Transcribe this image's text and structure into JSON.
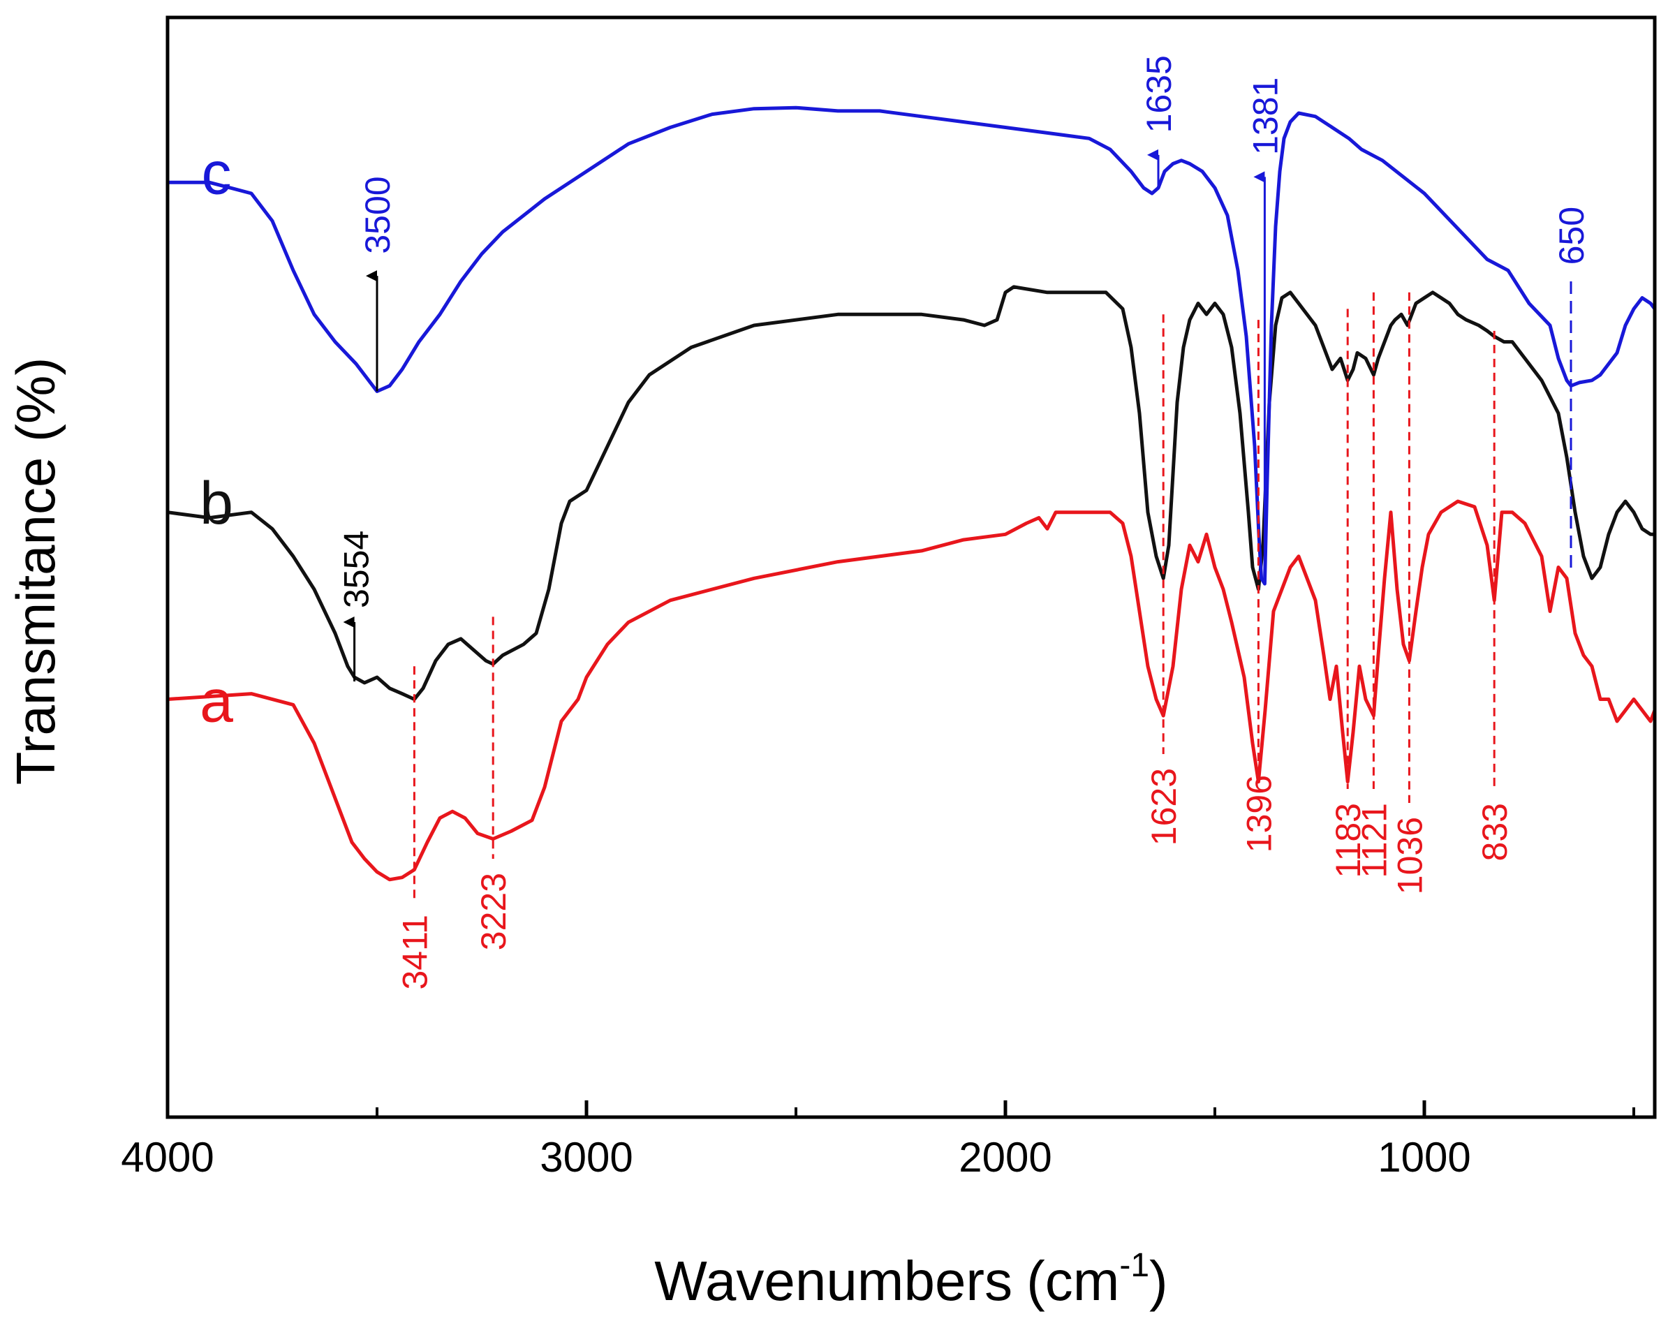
{
  "chart_data": {
    "type": "line",
    "title": "",
    "xlabel": "Wavenumbers",
    "xlabel_unit": "cm",
    "xlabel_unit_exp": "-1",
    "ylabel": "Transmitance (%)",
    "xlim": [
      4000,
      450
    ],
    "x_reversed": true,
    "ylim": [
      0,
      100
    ],
    "y_ticks_shown": false,
    "x_ticks": [
      {
        "value": 4000,
        "label": "4000"
      },
      {
        "value": 3000,
        "label": "3000"
      },
      {
        "value": 2000,
        "label": "2000"
      },
      {
        "value": 1000,
        "label": "1000"
      }
    ],
    "x_minor_ticks": [
      3500,
      2500,
      1500,
      500
    ],
    "series": [
      {
        "name": "a",
        "label": "a",
        "color": "#e8161c",
        "points": [
          [
            4000,
            38
          ],
          [
            3800,
            38.5
          ],
          [
            3700,
            37.5
          ],
          [
            3650,
            34
          ],
          [
            3600,
            29
          ],
          [
            3560,
            25
          ],
          [
            3530,
            23.5
          ],
          [
            3500,
            22.3
          ],
          [
            3470,
            21.6
          ],
          [
            3440,
            21.8
          ],
          [
            3411,
            22.5
          ],
          [
            3380,
            25
          ],
          [
            3350,
            27.2
          ],
          [
            3320,
            27.8
          ],
          [
            3290,
            27.2
          ],
          [
            3260,
            25.8
          ],
          [
            3223,
            25.3
          ],
          [
            3180,
            26
          ],
          [
            3130,
            27
          ],
          [
            3100,
            30
          ],
          [
            3060,
            36
          ],
          [
            3020,
            38
          ],
          [
            3000,
            40
          ],
          [
            2950,
            43
          ],
          [
            2900,
            45
          ],
          [
            2800,
            47
          ],
          [
            2600,
            49
          ],
          [
            2400,
            50.5
          ],
          [
            2200,
            51.5
          ],
          [
            2100,
            52.5
          ],
          [
            2000,
            53
          ],
          [
            1950,
            54
          ],
          [
            1920,
            54.5
          ],
          [
            1900,
            53.5
          ],
          [
            1880,
            55
          ],
          [
            1800,
            55
          ],
          [
            1750,
            55
          ],
          [
            1720,
            54
          ],
          [
            1700,
            51
          ],
          [
            1680,
            46
          ],
          [
            1660,
            41
          ],
          [
            1640,
            38
          ],
          [
            1623,
            36.5
          ],
          [
            1600,
            41
          ],
          [
            1580,
            48
          ],
          [
            1560,
            52
          ],
          [
            1540,
            50.5
          ],
          [
            1520,
            53
          ],
          [
            1500,
            50
          ],
          [
            1480,
            48
          ],
          [
            1460,
            45
          ],
          [
            1430,
            40
          ],
          [
            1410,
            34
          ],
          [
            1396,
            30.5
          ],
          [
            1380,
            37
          ],
          [
            1360,
            46
          ],
          [
            1340,
            48
          ],
          [
            1320,
            50
          ],
          [
            1300,
            51
          ],
          [
            1280,
            49
          ],
          [
            1260,
            47
          ],
          [
            1240,
            42
          ],
          [
            1225,
            38
          ],
          [
            1210,
            41
          ],
          [
            1195,
            35
          ],
          [
            1183,
            30.5
          ],
          [
            1170,
            35
          ],
          [
            1155,
            41
          ],
          [
            1140,
            38
          ],
          [
            1121,
            36.5
          ],
          [
            1110,
            42
          ],
          [
            1095,
            49
          ],
          [
            1080,
            55
          ],
          [
            1065,
            48
          ],
          [
            1050,
            43
          ],
          [
            1036,
            41.5
          ],
          [
            1020,
            46
          ],
          [
            1005,
            50
          ],
          [
            990,
            53
          ],
          [
            960,
            55
          ],
          [
            920,
            56
          ],
          [
            880,
            55.5
          ],
          [
            850,
            52
          ],
          [
            833,
            47
          ],
          [
            815,
            55
          ],
          [
            790,
            55
          ],
          [
            760,
            54
          ],
          [
            720,
            51
          ],
          [
            700,
            46
          ],
          [
            680,
            50
          ],
          [
            660,
            49
          ],
          [
            640,
            44
          ],
          [
            620,
            42
          ],
          [
            600,
            41
          ],
          [
            580,
            38
          ],
          [
            560,
            38
          ],
          [
            540,
            36
          ],
          [
            520,
            37
          ],
          [
            500,
            38
          ],
          [
            480,
            37
          ],
          [
            460,
            36
          ],
          [
            450,
            37
          ]
        ],
        "peaks": [
          {
            "x": 3411,
            "label": "3411"
          },
          {
            "x": 3223,
            "label": "3223"
          },
          {
            "x": 1623,
            "label": "1623"
          },
          {
            "x": 1396,
            "label": "1396"
          },
          {
            "x": 1183,
            "label": "1183"
          },
          {
            "x": 1121,
            "label": "1121"
          },
          {
            "x": 1036,
            "label": "1036"
          },
          {
            "x": 833,
            "label": "833"
          }
        ]
      },
      {
        "name": "b",
        "label": "b",
        "color": "#111111",
        "points": [
          [
            4000,
            55
          ],
          [
            3900,
            54.5
          ],
          [
            3800,
            55
          ],
          [
            3750,
            53.5
          ],
          [
            3700,
            51
          ],
          [
            3650,
            48
          ],
          [
            3600,
            44
          ],
          [
            3570,
            41
          ],
          [
            3554,
            40
          ],
          [
            3530,
            39.5
          ],
          [
            3500,
            40
          ],
          [
            3470,
            39
          ],
          [
            3440,
            38.5
          ],
          [
            3411,
            38
          ],
          [
            3390,
            39
          ],
          [
            3360,
            41.5
          ],
          [
            3330,
            43
          ],
          [
            3300,
            43.5
          ],
          [
            3270,
            42.5
          ],
          [
            3240,
            41.5
          ],
          [
            3223,
            41.2
          ],
          [
            3200,
            42
          ],
          [
            3150,
            43
          ],
          [
            3120,
            44
          ],
          [
            3090,
            48
          ],
          [
            3060,
            54
          ],
          [
            3040,
            56
          ],
          [
            3000,
            57
          ],
          [
            2950,
            61
          ],
          [
            2900,
            65
          ],
          [
            2850,
            67.5
          ],
          [
            2750,
            70
          ],
          [
            2600,
            72
          ],
          [
            2400,
            73
          ],
          [
            2200,
            73
          ],
          [
            2100,
            72.5
          ],
          [
            2050,
            72
          ],
          [
            2020,
            72.5
          ],
          [
            2000,
            75
          ],
          [
            1980,
            75.5
          ],
          [
            1900,
            75
          ],
          [
            1800,
            75
          ],
          [
            1760,
            75
          ],
          [
            1720,
            73.5
          ],
          [
            1700,
            70
          ],
          [
            1680,
            64
          ],
          [
            1660,
            55
          ],
          [
            1640,
            51
          ],
          [
            1623,
            49
          ],
          [
            1610,
            52
          ],
          [
            1590,
            65
          ],
          [
            1575,
            70
          ],
          [
            1560,
            72.5
          ],
          [
            1540,
            74
          ],
          [
            1520,
            73
          ],
          [
            1500,
            74
          ],
          [
            1480,
            73
          ],
          [
            1460,
            70
          ],
          [
            1440,
            64
          ],
          [
            1420,
            55
          ],
          [
            1410,
            50
          ],
          [
            1396,
            48
          ],
          [
            1385,
            52
          ],
          [
            1370,
            65
          ],
          [
            1355,
            72
          ],
          [
            1340,
            74.5
          ],
          [
            1320,
            75
          ],
          [
            1300,
            74
          ],
          [
            1280,
            73
          ],
          [
            1260,
            72
          ],
          [
            1240,
            70
          ],
          [
            1220,
            68
          ],
          [
            1200,
            69
          ],
          [
            1183,
            67
          ],
          [
            1170,
            68
          ],
          [
            1160,
            69.5
          ],
          [
            1140,
            69
          ],
          [
            1121,
            67.5
          ],
          [
            1110,
            69
          ],
          [
            1090,
            71
          ],
          [
            1080,
            72
          ],
          [
            1070,
            72.5
          ],
          [
            1055,
            73
          ],
          [
            1040,
            72
          ],
          [
            1020,
            74
          ],
          [
            1000,
            74.5
          ],
          [
            980,
            75
          ],
          [
            960,
            74.5
          ],
          [
            940,
            74
          ],
          [
            920,
            73
          ],
          [
            900,
            72.5
          ],
          [
            870,
            72
          ],
          [
            850,
            71.5
          ],
          [
            833,
            71
          ],
          [
            810,
            70.5
          ],
          [
            790,
            70.5
          ],
          [
            760,
            69
          ],
          [
            720,
            67
          ],
          [
            680,
            64
          ],
          [
            660,
            60
          ],
          [
            640,
            55
          ],
          [
            620,
            51
          ],
          [
            600,
            49
          ],
          [
            580,
            50
          ],
          [
            560,
            53
          ],
          [
            540,
            55
          ],
          [
            520,
            56
          ],
          [
            500,
            55
          ],
          [
            480,
            53.5
          ],
          [
            460,
            53
          ],
          [
            450,
            53
          ]
        ],
        "peaks": [
          {
            "x": 3554,
            "label": "3554"
          }
        ]
      },
      {
        "name": "c",
        "label": "c",
        "color": "#1818d8",
        "points": [
          [
            4000,
            85
          ],
          [
            3900,
            85
          ],
          [
            3850,
            84.5
          ],
          [
            3800,
            84
          ],
          [
            3750,
            81.5
          ],
          [
            3700,
            77
          ],
          [
            3650,
            73
          ],
          [
            3600,
            70.5
          ],
          [
            3550,
            68.5
          ],
          [
            3500,
            66
          ],
          [
            3470,
            66.5
          ],
          [
            3440,
            68
          ],
          [
            3400,
            70.5
          ],
          [
            3350,
            73
          ],
          [
            3300,
            76
          ],
          [
            3250,
            78.5
          ],
          [
            3200,
            80.5
          ],
          [
            3100,
            83.5
          ],
          [
            3000,
            86
          ],
          [
            2900,
            88.5
          ],
          [
            2800,
            90
          ],
          [
            2700,
            91.2
          ],
          [
            2600,
            91.7
          ],
          [
            2500,
            91.8
          ],
          [
            2400,
            91.5
          ],
          [
            2300,
            91.5
          ],
          [
            2200,
            91
          ],
          [
            2100,
            90.5
          ],
          [
            2000,
            90
          ],
          [
            1900,
            89.5
          ],
          [
            1800,
            89
          ],
          [
            1750,
            88
          ],
          [
            1700,
            86
          ],
          [
            1670,
            84.5
          ],
          [
            1650,
            84
          ],
          [
            1635,
            84.5
          ],
          [
            1620,
            86
          ],
          [
            1600,
            86.7
          ],
          [
            1580,
            87
          ],
          [
            1560,
            86.7
          ],
          [
            1530,
            86
          ],
          [
            1500,
            84.5
          ],
          [
            1470,
            82
          ],
          [
            1445,
            77
          ],
          [
            1425,
            71
          ],
          [
            1405,
            61
          ],
          [
            1395,
            53
          ],
          [
            1389,
            49
          ],
          [
            1381,
            48.5
          ],
          [
            1375,
            58
          ],
          [
            1365,
            72
          ],
          [
            1355,
            81
          ],
          [
            1345,
            86
          ],
          [
            1335,
            89
          ],
          [
            1320,
            90.5
          ],
          [
            1300,
            91.3
          ],
          [
            1260,
            91
          ],
          [
            1220,
            90
          ],
          [
            1180,
            89
          ],
          [
            1150,
            88
          ],
          [
            1100,
            87
          ],
          [
            1000,
            84
          ],
          [
            900,
            80
          ],
          [
            850,
            78
          ],
          [
            800,
            77
          ],
          [
            750,
            74
          ],
          [
            700,
            72
          ],
          [
            680,
            69
          ],
          [
            660,
            67
          ],
          [
            650,
            66.5
          ],
          [
            630,
            66.8
          ],
          [
            600,
            67
          ],
          [
            580,
            67.5
          ],
          [
            560,
            68.5
          ],
          [
            540,
            69.5
          ],
          [
            520,
            72
          ],
          [
            500,
            73.5
          ],
          [
            480,
            74.5
          ],
          [
            460,
            74
          ],
          [
            450,
            73.5
          ]
        ],
        "peaks": [
          {
            "x": 3500,
            "label": "3500"
          },
          {
            "x": 1635,
            "label": "1635"
          },
          {
            "x": 1381,
            "label": "1381"
          },
          {
            "x": 650,
            "label": "650"
          }
        ]
      }
    ]
  }
}
